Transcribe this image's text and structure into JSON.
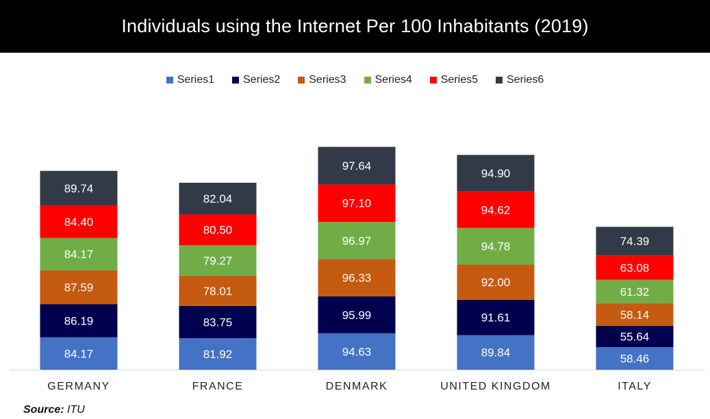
{
  "title": "Individuals using the Internet Per 100 Inhabitants (2019)",
  "source": {
    "label": "Source:",
    "value": "ITU"
  },
  "colors": {
    "Series1": "#4472c4",
    "Series2": "#00004f",
    "Series3": "#c55a11",
    "Series4": "#70ad47",
    "Series5": "#ff0000",
    "Series6": "#323a48"
  },
  "chart_data": {
    "type": "bar",
    "stacked": true,
    "categories": [
      "GERMANY",
      "FRANCE",
      "DENMARK",
      "UNITED KINGDOM",
      "ITALY"
    ],
    "series": [
      {
        "name": "Series1",
        "values": [
          84.17,
          81.92,
          94.63,
          89.84,
          58.46
        ]
      },
      {
        "name": "Series2",
        "values": [
          86.19,
          83.75,
          95.99,
          91.61,
          55.64
        ]
      },
      {
        "name": "Series3",
        "values": [
          87.59,
          78.01,
          96.33,
          92.0,
          58.14
        ]
      },
      {
        "name": "Series4",
        "values": [
          84.17,
          79.27,
          96.97,
          94.78,
          61.32
        ]
      },
      {
        "name": "Series5",
        "values": [
          84.4,
          80.5,
          97.1,
          94.62,
          63.08
        ]
      },
      {
        "name": "Series6",
        "values": [
          89.74,
          82.04,
          97.64,
          94.9,
          74.39
        ]
      }
    ],
    "legend_position": "top",
    "grid": false,
    "data_labels": true,
    "title": "Individuals using the Internet Per 100 Inhabitants (2019)",
    "xlabel": "",
    "ylabel": ""
  }
}
